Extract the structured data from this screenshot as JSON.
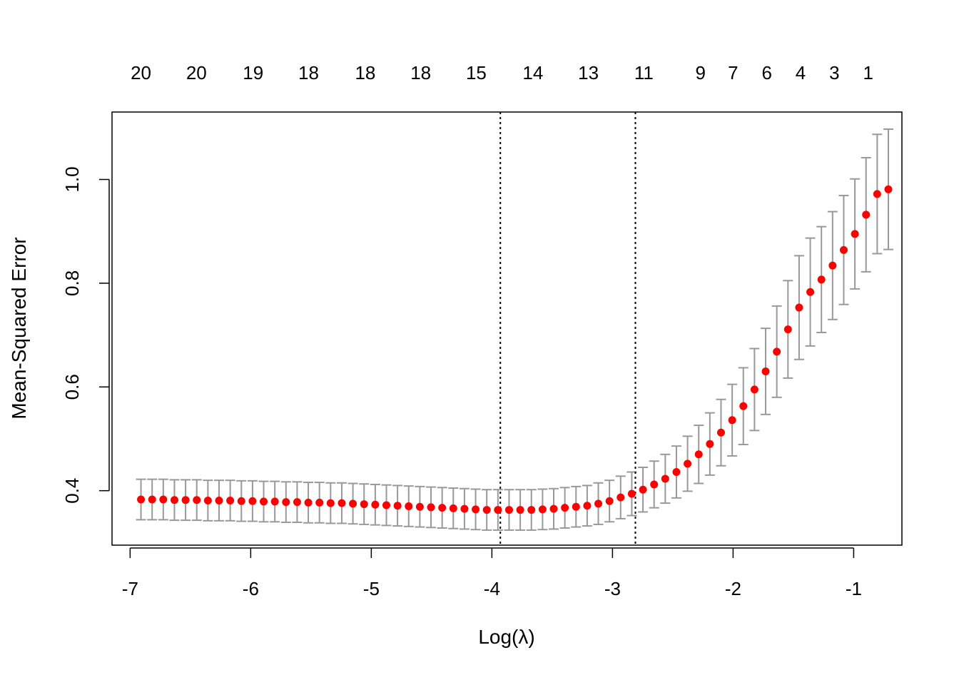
{
  "chart_data": {
    "type": "scatter",
    "xlabel": "Log(λ)",
    "ylabel": "Mean-Squared Error",
    "xlim": [
      -7.15,
      -0.6
    ],
    "ylim": [
      0.295,
      1.13
    ],
    "x_ticks": [
      -7,
      -6,
      -5,
      -4,
      -3,
      -2,
      -1
    ],
    "x_tick_labels": [
      "-7",
      "-6",
      "-5",
      "-4",
      "-3",
      "-2",
      "-1"
    ],
    "y_ticks": [
      0.4,
      0.6,
      0.8,
      1.0
    ],
    "y_tick_labels": [
      "0.4",
      "0.6",
      "0.8",
      "1.0"
    ],
    "top_axis": {
      "x": [
        -6.91,
        -6.45,
        -5.98,
        -5.52,
        -5.05,
        -4.59,
        -4.13,
        -3.66,
        -3.2,
        -2.74,
        -2.27,
        -2.0,
        -1.72,
        -1.44,
        -1.16,
        -0.88
      ],
      "labels": [
        "20",
        "20",
        "19",
        "18",
        "18",
        "18",
        "15",
        "14",
        "13",
        "11",
        "9",
        "7",
        "6",
        "4",
        "3",
        "1"
      ]
    },
    "vlines": [
      -3.93,
      -2.81
    ],
    "colors": {
      "point": "#ff0000",
      "errorbar": "#999999",
      "vline": "#000000"
    },
    "points": {
      "x_start": -6.91,
      "x_step": 0.0925,
      "y": [
        0.383,
        0.383,
        0.383,
        0.382,
        0.382,
        0.382,
        0.381,
        0.381,
        0.381,
        0.38,
        0.38,
        0.379,
        0.379,
        0.378,
        0.378,
        0.377,
        0.377,
        0.376,
        0.376,
        0.375,
        0.374,
        0.373,
        0.372,
        0.371,
        0.37,
        0.369,
        0.368,
        0.367,
        0.366,
        0.365,
        0.364,
        0.363,
        0.363,
        0.363,
        0.363,
        0.363,
        0.364,
        0.365,
        0.367,
        0.369,
        0.371,
        0.375,
        0.38,
        0.387,
        0.394,
        0.402,
        0.412,
        0.423,
        0.436,
        0.452,
        0.47,
        0.49,
        0.512,
        0.536,
        0.563,
        0.595,
        0.63,
        0.668,
        0.711,
        0.753,
        0.783,
        0.807,
        0.834,
        0.864,
        0.895,
        0.932,
        0.972,
        0.981
      ],
      "se": [
        0.039,
        0.039,
        0.039,
        0.039,
        0.039,
        0.039,
        0.039,
        0.039,
        0.039,
        0.039,
        0.039,
        0.039,
        0.039,
        0.039,
        0.039,
        0.039,
        0.039,
        0.039,
        0.039,
        0.039,
        0.039,
        0.039,
        0.039,
        0.039,
        0.039,
        0.039,
        0.039,
        0.039,
        0.039,
        0.039,
        0.039,
        0.039,
        0.039,
        0.039,
        0.039,
        0.039,
        0.039,
        0.039,
        0.039,
        0.039,
        0.039,
        0.04,
        0.04,
        0.041,
        0.042,
        0.043,
        0.045,
        0.047,
        0.05,
        0.053,
        0.056,
        0.06,
        0.064,
        0.069,
        0.074,
        0.079,
        0.083,
        0.088,
        0.094,
        0.1,
        0.104,
        0.102,
        0.104,
        0.105,
        0.106,
        0.11,
        0.115,
        0.116
      ]
    }
  }
}
